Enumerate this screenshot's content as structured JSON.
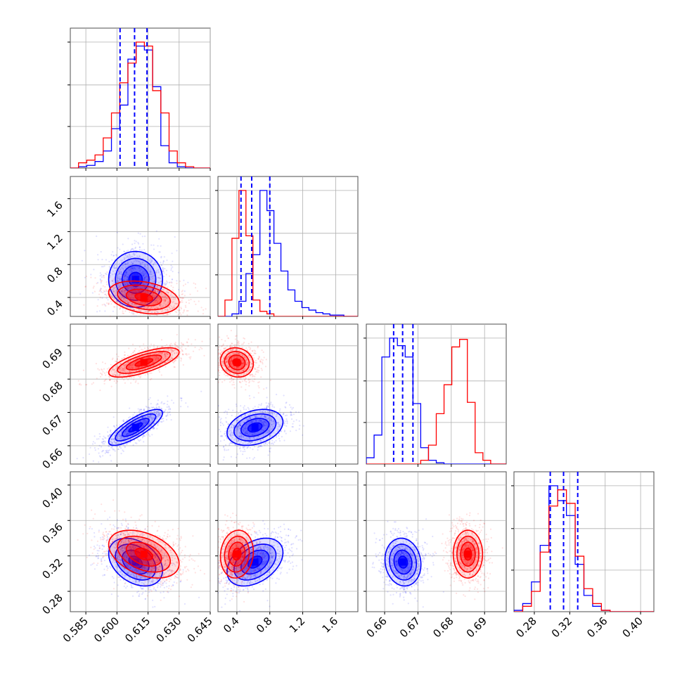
{
  "chart_data": {
    "type": "corner",
    "grid": true,
    "colors": {
      "blue": "#0000ff",
      "red": "#ff0000"
    },
    "parameters": [
      {
        "ticks": [
          "0.585",
          "0.600",
          "0.615",
          "0.630",
          "0.645"
        ],
        "range": [
          0.5775,
          0.645
        ]
      },
      {
        "ticks": [
          "0.4",
          "0.8",
          "1.2",
          "1.6"
        ],
        "range": [
          0.17,
          1.87
        ]
      },
      {
        "ticks": [
          "0.66",
          "0.67",
          "0.68",
          "0.69"
        ],
        "range": [
          0.6545,
          0.6965
        ]
      },
      {
        "ticks": [
          "0.28",
          "0.32",
          "0.36",
          "0.40"
        ],
        "range": [
          0.257,
          0.415
        ]
      }
    ],
    "series": [
      {
        "color": "#0000ff",
        "means": [
          0.609,
          0.62,
          0.6655,
          0.313
        ],
        "sds": [
          0.0065,
          0.17,
          0.0027,
          0.0135
        ],
        "corr": [
          [
            1,
            0,
            0.8,
            -0.35
          ],
          [
            0,
            1,
            0.3,
            0.4
          ],
          [
            0.8,
            0.3,
            1,
            -0.1
          ],
          [
            -0.35,
            0.4,
            -0.1,
            1
          ]
        ],
        "quantiles": [
          [
            0.6015,
            0.6085,
            0.6145
          ],
          [
            0.45,
            0.58,
            0.8
          ],
          [
            0.6627,
            0.6654,
            0.6685
          ],
          [
            0.298,
            0.313,
            0.329
          ]
        ],
        "histograms": [
          [
            0,
            0.01,
            0.02,
            0.05,
            0.13,
            0.3,
            0.48,
            0.83,
            0.93,
            0.9,
            0.62,
            0.17,
            0.04,
            0.01,
            0,
            0,
            0
          ],
          [
            0,
            0,
            0.02,
            0.12,
            0.34,
            0.49,
            1,
            0.84,
            0.58,
            0.36,
            0.21,
            0.12,
            0.07,
            0.05,
            0.03,
            0.02,
            0.01,
            0.01,
            0,
            0
          ],
          [
            0.05,
            0.23,
            0.85,
            1,
            0.94,
            0.85,
            0.48,
            0.13,
            0.03,
            0.01,
            0,
            0,
            0,
            0,
            0,
            0,
            0,
            0
          ],
          [
            0.01,
            0.06,
            0.22,
            0.49,
            0.93,
            0.82,
            0.71,
            0.35,
            0.12,
            0.04,
            0.01,
            0,
            0,
            0,
            0,
            0
          ]
        ]
      },
      {
        "color": "#ff0000",
        "means": [
          0.613,
          0.4,
          0.685,
          0.322
        ],
        "sds": [
          0.0085,
          0.1,
          0.0022,
          0.0135
        ],
        "corr": [
          [
            1,
            -0.3,
            0.7,
            -0.4
          ],
          [
            -0.3,
            1,
            -0.1,
            0.1
          ],
          [
            0.7,
            -0.1,
            1,
            0
          ],
          [
            -0.4,
            0.1,
            0,
            1
          ]
        ],
        "histograms": [
          [
            0,
            0.04,
            0.06,
            0.1,
            0.23,
            0.42,
            0.65,
            0.8,
            0.96,
            0.93,
            0.59,
            0.42,
            0.13,
            0.04,
            0.01,
            0,
            0
          ],
          [
            0,
            0.13,
            0.62,
            1,
            0.64,
            0.13,
            0.04,
            0.02,
            0,
            0,
            0,
            0,
            0,
            0,
            0,
            0,
            0,
            0,
            0,
            0
          ],
          [
            0,
            0,
            0,
            0,
            0,
            0,
            0,
            0.03,
            0.15,
            0.4,
            0.63,
            0.93,
            0.99,
            0.49,
            0.09,
            0.03,
            0,
            0
          ],
          [
            0,
            0.04,
            0.15,
            0.44,
            0.78,
            0.9,
            0.8,
            0.41,
            0.17,
            0.06,
            0.01,
            0,
            0,
            0,
            0,
            0
          ]
        ]
      }
    ]
  }
}
